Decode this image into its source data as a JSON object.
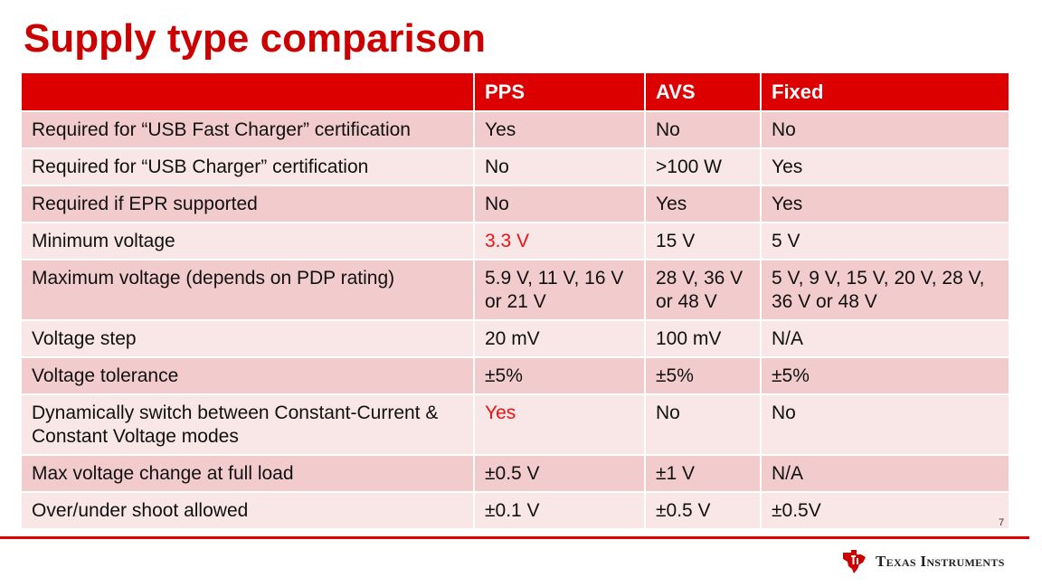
{
  "title": "Supply type comparison",
  "table": {
    "headers": [
      "",
      "PPS",
      "AVS",
      "Fixed"
    ],
    "rows": [
      {
        "label": "Required for “USB Fast Charger” certification",
        "pps": "Yes",
        "avs": "No",
        "fixed": "No"
      },
      {
        "label": "Required for “USB Charger” certification",
        "pps": "No",
        "avs": ">100 W",
        "fixed": "Yes"
      },
      {
        "label": "Required if EPR supported",
        "pps": "No",
        "avs": "Yes",
        "fixed": "Yes"
      },
      {
        "label": "Minimum voltage",
        "pps": "3.3 V",
        "avs": "15 V",
        "fixed": "5 V"
      },
      {
        "label": "Maximum voltage (depends on PDP rating)",
        "pps": "5.9 V, 11 V, 16 V or 21 V",
        "avs": "28 V, 36 V or 48 V",
        "fixed": "5 V, 9 V, 15 V, 20 V, 28 V, 36 V or 48 V"
      },
      {
        "label": "Voltage step",
        "pps": "20 mV",
        "avs": "100 mV",
        "fixed": "N/A"
      },
      {
        "label": "Voltage tolerance",
        "pps": "±5%",
        "avs": "±5%",
        "fixed": "±5%"
      },
      {
        "label": "Dynamically switch between Constant-Current & Constant Voltage modes",
        "pps": "Yes",
        "avs": "No",
        "fixed": "No"
      },
      {
        "label": "Max voltage change at full load",
        "pps": "±0.5 V",
        "avs": "±1 V",
        "fixed": "N/A"
      },
      {
        "label": "Over/under shoot allowed",
        "pps": "±0.1 V",
        "avs": "±0.5 V",
        "fixed": "±0.5V"
      }
    ]
  },
  "highlight_color": "#ee1111",
  "page_number": "7",
  "footer": {
    "logo_icon": "texas-instruments-logo-icon",
    "logo_text": "Texas Instruments"
  }
}
